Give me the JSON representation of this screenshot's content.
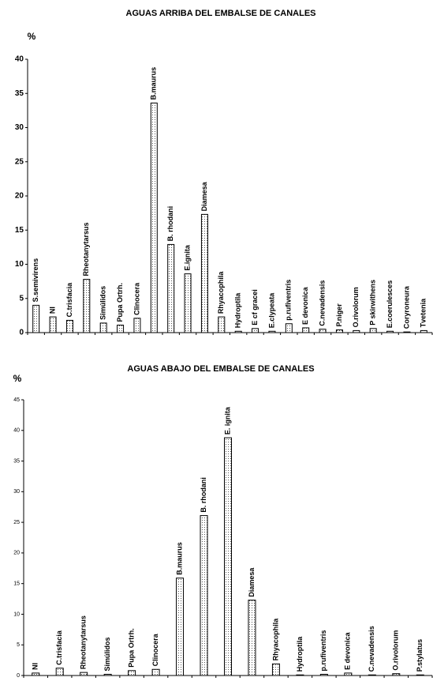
{
  "chart_data": [
    {
      "type": "bar",
      "title": "AGUAS ARRIBA DEL EMBALSE DE CANALES",
      "y_label": "%",
      "categories": [
        "S.semivirens",
        "NI",
        "C.trisfacia",
        "Rheotanytarsus",
        "Simúlidos",
        "Pupa Ortrh.",
        "Clinocera",
        "B.maurus",
        "B. rhodani",
        "E.ignita",
        "Diamesa",
        "Rhyacophila",
        "Hydroptila",
        "E cf gracei",
        "E.clypeata",
        "p.rufiventris",
        "E devonica",
        "C.nevadensis",
        "P.niger",
        "O.rivolorum",
        "P skirwithens",
        "E.coerulesces",
        "Coryroneura",
        "Tvetenia"
      ],
      "values": [
        4,
        2.3,
        1.8,
        7.8,
        1.4,
        1.1,
        2.1,
        33.6,
        12.9,
        8.6,
        17.3,
        2.3,
        0.2,
        0.6,
        0.2,
        1.3,
        0.7,
        0.5,
        0.4,
        0.3,
        0.6,
        0.2,
        0.1,
        0.3
      ],
      "ylim": [
        0,
        40
      ],
      "yticks": [
        0,
        5,
        10,
        15,
        20,
        25,
        30,
        35,
        40
      ]
    },
    {
      "type": "bar",
      "title": "AGUAS ABAJO DEL EMBALSE DE CANALES",
      "y_label": "%",
      "categories": [
        "NI",
        "C.trisfacia",
        "Rheotanytarsus",
        "Simúlidos",
        "Pupa Ortrh.",
        "Clinocera",
        "B.maurus",
        "B. rhodani",
        "E. ignita",
        "Diamesa",
        "Rhyacophila",
        "Hydroptila",
        "p.rufiventris",
        "E devonica",
        "C.nevadensis",
        "O.rivolorum",
        "P.stylatus"
      ],
      "values": [
        0.4,
        1.2,
        0.5,
        0.2,
        0.8,
        1.0,
        15.9,
        26.1,
        38.8,
        12.3,
        1.9,
        0.1,
        0.2,
        0.4,
        0.1,
        0.3,
        0.1
      ],
      "ylim": [
        0,
        45
      ],
      "yticks": [
        0,
        5,
        10,
        15,
        20,
        25,
        30,
        35,
        40,
        45
      ]
    }
  ]
}
